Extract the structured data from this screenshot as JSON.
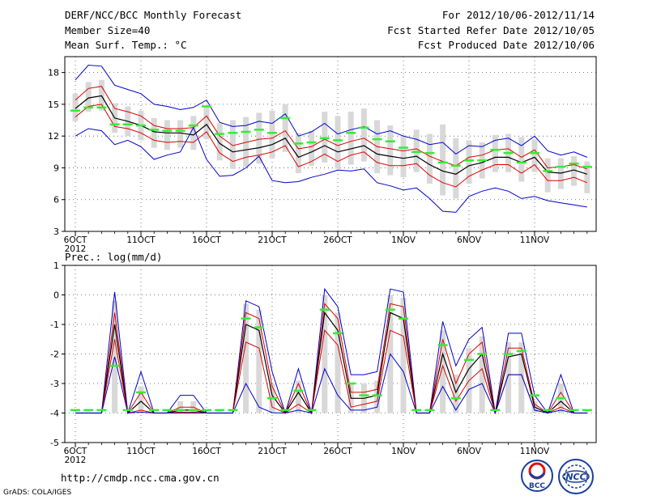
{
  "header": {
    "left": [
      "DERF/NCC/BCC Monthly Forecast",
      "Member Size=40",
      "Mean Surf. Temp.: °C"
    ],
    "right": [
      "For 2012/10/06-2012/11/14",
      "Fcst Started Refer Date 2012/10/05",
      "Fcst Produced Date 2012/10/06"
    ]
  },
  "footer": {
    "url": "http://cmdp.ncc.cma.gov.cn",
    "credit": "GrADS: COLA/IGES"
  },
  "logos": {
    "bcc": "BCC",
    "ncc": "NCC"
  },
  "colors": {
    "max_min": "#0000cc",
    "std_band": "#dd0000",
    "mean": "#000000",
    "obs_mark": "#33ee33",
    "box": "#d8d8d8"
  },
  "chart_data": [
    {
      "type": "line",
      "title": "Mean Surf. Temp.: °C",
      "x_ticks": [
        "6OCT",
        "11OCT",
        "16OCT",
        "21OCT",
        "26OCT",
        "1NOV",
        "6NOV",
        "11NOV"
      ],
      "x_sublabel": "2012",
      "y_ticks": [
        "3",
        "6",
        "9",
        "12",
        "15",
        "18"
      ],
      "ylim": [
        3,
        19.5
      ],
      "days": 40,
      "series": [
        {
          "name": "max",
          "values": [
            17.3,
            18.7,
            18.6,
            16.8,
            16.4,
            16.0,
            15.0,
            14.8,
            14.5,
            14.7,
            15.4,
            13.3,
            12.9,
            13.0,
            13.4,
            13.2,
            14.1,
            12.0,
            12.4,
            13.2,
            12.2,
            12.6,
            12.9,
            12.2,
            12.5,
            12.0,
            11.7,
            11.2,
            11.4,
            10.3,
            11.1,
            11.0,
            11.6,
            11.8,
            11.1,
            12.0,
            10.6,
            10.2,
            10.5,
            10.0
          ]
        },
        {
          "name": "upper",
          "values": [
            15.4,
            16.5,
            16.7,
            14.6,
            14.3,
            13.9,
            13.0,
            12.7,
            12.7,
            12.8,
            13.9,
            12.0,
            11.1,
            11.4,
            11.7,
            11.8,
            12.5,
            10.8,
            11.0,
            11.7,
            11.1,
            11.5,
            11.8,
            11.0,
            10.8,
            10.6,
            10.8,
            10.1,
            9.6,
            9.2,
            10.0,
            10.2,
            10.7,
            10.8,
            10.0,
            10.7,
            9.0,
            9.1,
            9.3,
            8.9
          ]
        },
        {
          "name": "mean",
          "values": [
            14.6,
            15.6,
            15.8,
            13.7,
            13.4,
            13.0,
            12.4,
            12.3,
            12.3,
            12.1,
            13.1,
            11.3,
            10.5,
            10.7,
            10.9,
            11.2,
            11.8,
            10.0,
            10.5,
            11.1,
            10.5,
            10.8,
            11.1,
            10.3,
            10.1,
            9.9,
            10.1,
            9.3,
            8.7,
            8.4,
            9.2,
            9.5,
            10.0,
            10.0,
            9.5,
            10.0,
            8.6,
            8.5,
            8.8,
            8.4
          ]
        },
        {
          "name": "lower",
          "values": [
            13.8,
            14.8,
            15.0,
            12.9,
            12.7,
            12.3,
            11.6,
            11.4,
            11.5,
            11.4,
            12.4,
            10.4,
            9.6,
            10.0,
            10.2,
            10.5,
            11.1,
            9.1,
            9.6,
            10.3,
            9.6,
            10.2,
            10.5,
            9.5,
            9.2,
            9.2,
            9.4,
            8.3,
            7.6,
            7.2,
            8.2,
            8.8,
            9.3,
            9.3,
            8.5,
            9.3,
            7.8,
            7.8,
            8.1,
            7.6
          ]
        },
        {
          "name": "min",
          "values": [
            12.0,
            12.7,
            12.5,
            11.2,
            11.6,
            11.0,
            9.8,
            10.2,
            10.5,
            12.8,
            9.8,
            8.2,
            8.3,
            9.0,
            10.1,
            7.8,
            7.6,
            7.7,
            8.1,
            8.4,
            8.8,
            8.7,
            8.9,
            7.6,
            7.3,
            6.9,
            7.1,
            6.1,
            4.9,
            4.8,
            6.3,
            6.8,
            7.1,
            6.8,
            6.1,
            6.3,
            5.9,
            5.7,
            5.5,
            5.3
          ]
        },
        {
          "name": "obs",
          "values": [
            14.4,
            14.7,
            14.7,
            13.1,
            13.1,
            13.0,
            12.6,
            12.5,
            12.5,
            13.0,
            14.8,
            12.2,
            12.3,
            12.4,
            12.6,
            12.3,
            13.7,
            11.3,
            11.4,
            11.8,
            11.6,
            12.3,
            12.8,
            11.7,
            11.5,
            10.9,
            10.5,
            10.4,
            9.5,
            9.2,
            9.7,
            9.7,
            10.7,
            10.4,
            9.5,
            10.4,
            8.7,
            9.1,
            9.4,
            9.1
          ]
        }
      ],
      "box_top": [
        16.0,
        17.1,
        17.3,
        15.1,
        14.8,
        14.4,
        13.7,
        13.5,
        13.5,
        13.9,
        14.9,
        13.2,
        13.5,
        13.8,
        14.2,
        14.4,
        15.0,
        12.3,
        12.5,
        14.3,
        13.9,
        14.3,
        14.6,
        13.5,
        13.0,
        12.1,
        12.6,
        12.2,
        13.1,
        11.8,
        11.6,
        11.4,
        12.1,
        12.2,
        11.9,
        11.7,
        9.9,
        9.9,
        10.1,
        9.6
      ],
      "box_bottom": [
        13.4,
        14.3,
        14.4,
        12.3,
        12.0,
        11.6,
        10.9,
        10.7,
        10.9,
        10.7,
        11.7,
        9.7,
        8.9,
        9.1,
        9.4,
        9.9,
        10.5,
        8.5,
        9.2,
        9.5,
        8.9,
        9.3,
        9.6,
        8.5,
        8.3,
        8.1,
        8.6,
        7.5,
        6.4,
        6.1,
        7.5,
        8.0,
        8.6,
        8.6,
        7.7,
        8.6,
        6.7,
        7.0,
        7.3,
        6.6
      ]
    },
    {
      "type": "line",
      "title": "Prec.: log(mm/d)",
      "x_ticks": [
        "6OCT",
        "11OCT",
        "16OCT",
        "21OCT",
        "26OCT",
        "1NOV",
        "6NOV",
        "11NOV"
      ],
      "x_sublabel": "2012",
      "y_ticks": [
        "-5",
        "-4",
        "-3",
        "-2",
        "-1",
        "0",
        "1"
      ],
      "ylim": [
        -5,
        1
      ],
      "days": 40,
      "series": [
        {
          "name": "max",
          "values": [
            -4,
            -4,
            -4,
            0.1,
            -4,
            -2.6,
            -4,
            -4,
            -3.4,
            -3.4,
            -4,
            -4,
            -4,
            -0.2,
            -0.4,
            -2.6,
            -4,
            -2.5,
            -4,
            0.2,
            -0.4,
            -2.7,
            -2.7,
            -2.6,
            0.2,
            0.1,
            -4,
            -4,
            -0.9,
            -2.4,
            -1.5,
            -1.1,
            -4,
            -1.3,
            -1.3,
            -3.4,
            -4,
            -2.7,
            -4,
            -4
          ]
        },
        {
          "name": "upper",
          "values": [
            -4,
            -4,
            -4,
            -0.6,
            -4,
            -3.3,
            -4,
            -4,
            -3.8,
            -3.8,
            -4,
            -4,
            -4,
            -0.6,
            -0.8,
            -3.1,
            -4,
            -3.0,
            -4,
            -0.3,
            -0.8,
            -3.3,
            -3.3,
            -3.2,
            -0.3,
            -0.4,
            -4,
            -4,
            -1.5,
            -3.0,
            -2.0,
            -1.6,
            -4,
            -1.8,
            -1.8,
            -3.7,
            -4,
            -3.3,
            -4,
            -4
          ]
        },
        {
          "name": "mean",
          "values": [
            -4,
            -4,
            -4,
            -1.0,
            -4,
            -3.6,
            -4,
            -4,
            -3.9,
            -3.9,
            -4,
            -4,
            -4,
            -1.0,
            -1.2,
            -3.4,
            -4,
            -3.3,
            -4,
            -0.6,
            -1.2,
            -3.5,
            -3.5,
            -3.4,
            -0.6,
            -0.8,
            -4,
            -4,
            -2.0,
            -3.3,
            -2.5,
            -2.0,
            -4,
            -2.1,
            -2.0,
            -3.8,
            -4,
            -3.6,
            -4,
            -4
          ]
        },
        {
          "name": "lower",
          "values": [
            -4,
            -4,
            -4,
            -1.5,
            -4,
            -3.9,
            -4,
            -4,
            -3.97,
            -3.97,
            -4,
            -4,
            -4,
            -1.6,
            -1.8,
            -3.8,
            -4,
            -3.7,
            -4,
            -1.2,
            -1.7,
            -3.8,
            -3.7,
            -3.6,
            -1.2,
            -1.4,
            -4,
            -4,
            -2.4,
            -3.6,
            -2.9,
            -2.5,
            -4,
            -2.7,
            -2.7,
            -3.9,
            -4,
            -3.8,
            -4,
            -4
          ]
        },
        {
          "name": "min",
          "values": [
            -4,
            -4,
            -4,
            -2.1,
            -4,
            -3.97,
            -4,
            -4,
            -4,
            -4,
            -4,
            -4,
            -4,
            -3.0,
            -3.8,
            -3.99,
            -4,
            -3.9,
            -4,
            -2.5,
            -3.4,
            -3.9,
            -3.9,
            -3.8,
            -2.0,
            -2.6,
            -4,
            -4,
            -3.1,
            -3.9,
            -3.2,
            -3.0,
            -4,
            -2.7,
            -2.7,
            -3.9,
            -4,
            -3.9,
            -4,
            -4
          ]
        },
        {
          "name": "obs",
          "values": [
            -3.9,
            -3.9,
            -3.9,
            -2.4,
            -3.9,
            -3.3,
            -3.9,
            -3.9,
            -3.9,
            -3.9,
            -3.9,
            -3.9,
            -3.9,
            -0.8,
            -1.1,
            -3.5,
            -3.9,
            -3.25,
            -3.9,
            -0.5,
            -1.3,
            -3.0,
            -3.4,
            -3.4,
            -0.5,
            -0.8,
            -3.9,
            -3.9,
            -1.7,
            -3.5,
            -2.2,
            -2.0,
            -3.9,
            -2.0,
            -1.9,
            -3.4,
            -3.9,
            -3.5,
            -3.9,
            -3.9
          ]
        }
      ],
      "box_top": [
        -4,
        -4,
        -4,
        -0.2,
        -4,
        -3.1,
        -4,
        -4,
        -3.6,
        -3.6,
        -4,
        -4,
        -4,
        -0.3,
        -0.5,
        -3.0,
        -4,
        -2.9,
        -4,
        0,
        -0.6,
        -3.0,
        -3.0,
        -2.9,
        0,
        -0.1,
        -4,
        -4,
        -1.2,
        -2.7,
        -1.8,
        -1.4,
        -4,
        -1.6,
        -1.6,
        -3.6,
        -4,
        -3.0,
        -4,
        -4
      ],
      "box_bottom": [
        -4,
        -4,
        -4,
        -4,
        -4,
        -4,
        -4,
        -4,
        -4,
        -4,
        -4,
        -4,
        -4,
        -4,
        -4,
        -4,
        -4,
        -4,
        -4,
        -4,
        -4,
        -4,
        -4,
        -4,
        -4,
        -4,
        -4,
        -4,
        -4,
        -4,
        -4,
        -4,
        -4,
        -4,
        -4,
        -4,
        -4,
        -4,
        -4,
        -4
      ]
    }
  ]
}
